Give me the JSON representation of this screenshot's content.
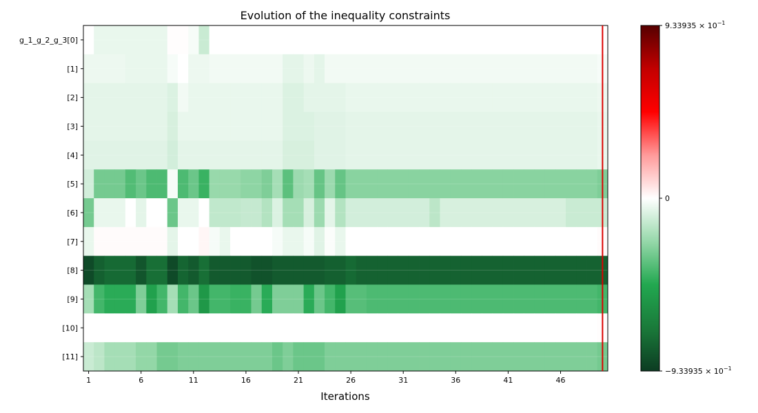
{
  "chart_data": {
    "type": "heatmap",
    "title": "Evolution of the inequality constraints",
    "xlabel": "Iterations",
    "ylabel": "",
    "x_tick_labels": [
      "1",
      "6",
      "11",
      "16",
      "21",
      "26",
      "31",
      "36",
      "41",
      "46"
    ],
    "y_tick_labels": [
      "g_1_g_2_g_3[0]",
      "[1]",
      "[2]",
      "[3]",
      "[4]",
      "[5]",
      "[6]",
      "[7]",
      "[8]",
      "[9]",
      "[10]",
      "[11]"
    ],
    "iterations": 50,
    "highlighted_iteration": 50,
    "highlight_color": "#dd0000",
    "colorbar": {
      "min": -0.933935,
      "max": 0.933935,
      "tick_labels": [
        "9.33935 × 10",
        "0",
        "−9.33935 × 10"
      ],
      "tick_exponent": "−1",
      "colormap": [
        "#0c3c22",
        "#1a7a3a",
        "#22a850",
        "#96d8aa",
        "#ffffff",
        "#ff9a9a",
        "#ff0000",
        "#c20000",
        "#560000"
      ]
    },
    "rows": [
      {
        "name": "g_1_g_2_g_3[0]",
        "breakpoints": [
          [
            1,
            0.0
          ],
          [
            2,
            -0.05
          ],
          [
            9,
            0.005
          ],
          [
            11,
            -0.02
          ],
          [
            12,
            -0.12
          ],
          [
            13,
            0.0
          ],
          [
            50,
            0.0
          ]
        ]
      },
      {
        "name": "[1]",
        "breakpoints": [
          [
            1,
            -0.04
          ],
          [
            5,
            -0.05
          ],
          [
            9,
            -0.02
          ],
          [
            10,
            0.0
          ],
          [
            11,
            -0.04
          ],
          [
            13,
            -0.03
          ],
          [
            20,
            -0.06
          ],
          [
            22,
            -0.04
          ],
          [
            23,
            -0.06
          ],
          [
            24,
            -0.03
          ],
          [
            26,
            -0.03
          ],
          [
            50,
            -0.02
          ]
        ]
      },
      {
        "name": "[2]",
        "breakpoints": [
          [
            1,
            -0.06
          ],
          [
            9,
            -0.08
          ],
          [
            10,
            -0.03
          ],
          [
            11,
            -0.05
          ],
          [
            20,
            -0.08
          ],
          [
            22,
            -0.06
          ],
          [
            26,
            -0.05
          ],
          [
            50,
            -0.04
          ]
        ]
      },
      {
        "name": "[3]",
        "breakpoints": [
          [
            1,
            -0.06
          ],
          [
            9,
            -0.09
          ],
          [
            10,
            -0.05
          ],
          [
            20,
            -0.08
          ],
          [
            23,
            -0.07
          ],
          [
            26,
            -0.06
          ],
          [
            50,
            -0.05
          ]
        ]
      },
      {
        "name": "[4]",
        "breakpoints": [
          [
            1,
            -0.07
          ],
          [
            9,
            -0.1
          ],
          [
            10,
            -0.06
          ],
          [
            20,
            -0.09
          ],
          [
            23,
            -0.07
          ],
          [
            26,
            -0.06
          ],
          [
            50,
            -0.05
          ]
        ]
      },
      {
        "name": "[5]",
        "breakpoints": [
          [
            1,
            -0.1
          ],
          [
            2,
            -0.3
          ],
          [
            5,
            -0.37
          ],
          [
            6,
            -0.32
          ],
          [
            7,
            -0.38
          ],
          [
            9,
            -0.02
          ],
          [
            10,
            -0.38
          ],
          [
            11,
            -0.32
          ],
          [
            12,
            -0.42
          ],
          [
            13,
            -0.23
          ],
          [
            16,
            -0.25
          ],
          [
            18,
            -0.28
          ],
          [
            19,
            -0.2
          ],
          [
            20,
            -0.35
          ],
          [
            21,
            -0.22
          ],
          [
            22,
            -0.2
          ],
          [
            23,
            -0.33
          ],
          [
            24,
            -0.22
          ],
          [
            25,
            -0.33
          ],
          [
            26,
            -0.26
          ],
          [
            50,
            -0.28
          ]
        ]
      },
      {
        "name": "[6]",
        "breakpoints": [
          [
            1,
            -0.3
          ],
          [
            2,
            -0.05
          ],
          [
            5,
            0.0
          ],
          [
            6,
            -0.06
          ],
          [
            7,
            0.0
          ],
          [
            9,
            -0.32
          ],
          [
            10,
            -0.05
          ],
          [
            12,
            0.0
          ],
          [
            13,
            -0.14
          ],
          [
            16,
            -0.13
          ],
          [
            18,
            -0.17
          ],
          [
            19,
            -0.08
          ],
          [
            20,
            -0.2
          ],
          [
            22,
            -0.09
          ],
          [
            23,
            -0.22
          ],
          [
            24,
            -0.06
          ],
          [
            25,
            -0.17
          ],
          [
            26,
            -0.1
          ],
          [
            34,
            -0.15
          ],
          [
            35,
            -0.09
          ],
          [
            47,
            -0.12
          ],
          [
            50,
            -0.12
          ]
        ]
      },
      {
        "name": "[7]",
        "breakpoints": [
          [
            1,
            -0.05
          ],
          [
            2,
            0.01
          ],
          [
            9,
            -0.06
          ],
          [
            10,
            0.0
          ],
          [
            12,
            0.02
          ],
          [
            13,
            -0.02
          ],
          [
            14,
            -0.05
          ],
          [
            15,
            0.0
          ],
          [
            19,
            -0.02
          ],
          [
            20,
            -0.05
          ],
          [
            22,
            -0.02
          ],
          [
            23,
            -0.07
          ],
          [
            24,
            -0.01
          ],
          [
            25,
            -0.05
          ],
          [
            26,
            0.0
          ],
          [
            50,
            0.01
          ]
        ]
      },
      {
        "name": "[8]",
        "breakpoints": [
          [
            1,
            -0.88
          ],
          [
            2,
            -0.8
          ],
          [
            3,
            -0.76
          ],
          [
            6,
            -0.84
          ],
          [
            7,
            -0.74
          ],
          [
            9,
            -0.88
          ],
          [
            10,
            -0.78
          ],
          [
            11,
            -0.82
          ],
          [
            12,
            -0.74
          ],
          [
            13,
            -0.82
          ],
          [
            17,
            -0.85
          ],
          [
            19,
            -0.82
          ],
          [
            24,
            -0.8
          ],
          [
            26,
            -0.76
          ],
          [
            27,
            -0.79
          ],
          [
            50,
            -0.79
          ]
        ]
      },
      {
        "name": "[9]",
        "breakpoints": [
          [
            1,
            -0.2
          ],
          [
            2,
            -0.4
          ],
          [
            3,
            -0.45
          ],
          [
            6,
            -0.28
          ],
          [
            7,
            -0.5
          ],
          [
            8,
            -0.4
          ],
          [
            9,
            -0.2
          ],
          [
            10,
            -0.4
          ],
          [
            11,
            -0.32
          ],
          [
            12,
            -0.55
          ],
          [
            13,
            -0.4
          ],
          [
            15,
            -0.42
          ],
          [
            17,
            -0.3
          ],
          [
            18,
            -0.45
          ],
          [
            19,
            -0.28
          ],
          [
            22,
            -0.45
          ],
          [
            23,
            -0.32
          ],
          [
            24,
            -0.4
          ],
          [
            25,
            -0.5
          ],
          [
            26,
            -0.36
          ],
          [
            28,
            -0.38
          ],
          [
            50,
            -0.4
          ]
        ]
      },
      {
        "name": "[10]",
        "breakpoints": [
          [
            1,
            0.0
          ],
          [
            50,
            0.005
          ]
        ]
      },
      {
        "name": "[11]",
        "breakpoints": [
          [
            1,
            -0.12
          ],
          [
            2,
            -0.15
          ],
          [
            3,
            -0.2
          ],
          [
            4,
            -0.2
          ],
          [
            6,
            -0.24
          ],
          [
            8,
            -0.3
          ],
          [
            10,
            -0.28
          ],
          [
            12,
            -0.28
          ],
          [
            19,
            -0.32
          ],
          [
            20,
            -0.28
          ],
          [
            21,
            -0.32
          ],
          [
            24,
            -0.28
          ],
          [
            50,
            -0.3
          ]
        ]
      }
    ]
  }
}
